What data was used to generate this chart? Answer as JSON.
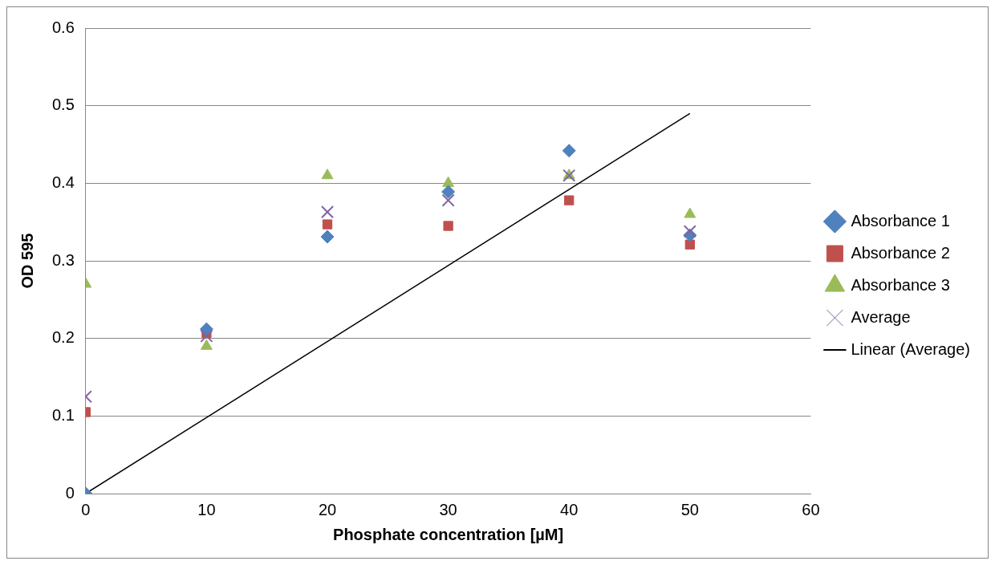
{
  "chart_data": {
    "type": "scatter",
    "xlabel": "Phosphate concentration [µM]",
    "ylabel": "OD 595",
    "xlim": [
      0,
      60
    ],
    "xticks": [
      0,
      10,
      20,
      30,
      40,
      50,
      60
    ],
    "ylim": [
      0,
      0.6
    ],
    "yticks": [
      0,
      0.1,
      0.2,
      0.3,
      0.4,
      0.5,
      0.6
    ],
    "grid": "y",
    "legend": "right",
    "x": [
      0,
      10,
      20,
      30,
      40,
      50
    ],
    "series": [
      {
        "name": "Absorbance 1",
        "color": "#4f81bd",
        "marker": "diamond",
        "values": [
          0,
          0.212,
          0.331,
          0.389,
          0.442,
          0.333
        ]
      },
      {
        "name": "Absorbance 2",
        "color": "#c0504d",
        "marker": "square",
        "values": [
          0.105,
          0.207,
          0.347,
          0.345,
          0.378,
          0.321
        ]
      },
      {
        "name": "Absorbance 3",
        "color": "#9bbb59",
        "marker": "triangle",
        "values": [
          0.27,
          0.19,
          0.41,
          0.4,
          0.41,
          0.36
        ]
      },
      {
        "name": "Average",
        "color": "#8064a2",
        "marker": "cross",
        "values": [
          0.125,
          0.203,
          0.363,
          0.378,
          0.41,
          0.338
        ]
      },
      {
        "name": "Linear (Average)",
        "type": "line",
        "color": "#000000",
        "marker": "none",
        "line_style": "solid",
        "x": [
          0,
          50
        ],
        "values": [
          0,
          0.49
        ]
      }
    ]
  }
}
